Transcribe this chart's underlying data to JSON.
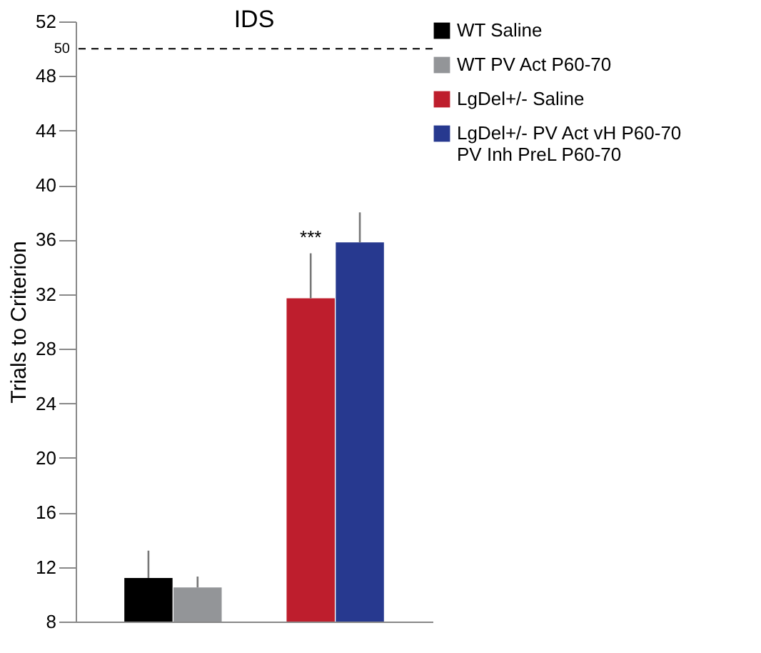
{
  "chart_data": {
    "type": "bar",
    "title": "IDS",
    "ylabel": "Trials to Criterion",
    "categories": [
      null,
      null
    ],
    "series": [
      {
        "name": "WT Saline",
        "color": "#000000",
        "values": [
          11.2,
          null
        ],
        "errors": [
          [
            11.2,
            13.2
          ],
          null
        ]
      },
      {
        "name": "WT PV Act P60-70",
        "color": "#939598",
        "values": [
          10.5,
          null
        ],
        "errors": [
          [
            10.5,
            11.3
          ],
          null
        ]
      },
      {
        "name": "LgDel+/- Saline",
        "color": "#be1e2d",
        "values": [
          null,
          31.7
        ],
        "errors": [
          null,
          [
            31.7,
            35.0
          ]
        ]
      },
      {
        "name": "LgDel+/- PV Act vH P60-70\nPV Inh PreL P60-70",
        "color": "#27398f",
        "values": [
          null,
          35.8
        ],
        "errors": [
          null,
          [
            35.8,
            38.0
          ]
        ]
      }
    ],
    "ylim": [
      8,
      52
    ],
    "yticks": [
      8,
      12,
      16,
      20,
      24,
      28,
      32,
      36,
      40,
      44,
      48,
      52
    ],
    "ref_lines": [
      {
        "axis": "y",
        "value": 50,
        "label": "50",
        "line_style": "dashed"
      }
    ],
    "annotations": [
      "***"
    ],
    "legend": "right",
    "grid": false
  }
}
